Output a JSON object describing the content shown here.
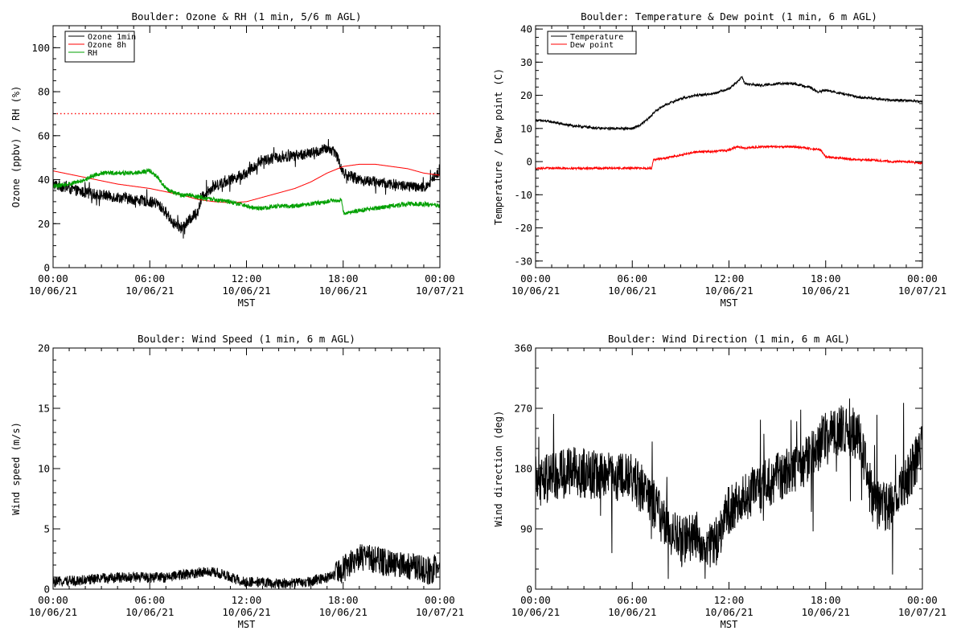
{
  "chart_data": [
    {
      "type": "line",
      "title": "Boulder: Ozone & RH (1 min, 5/6 m AGL)",
      "ylabel": "Ozone (ppbv) / RH (%)",
      "xlabel": "MST",
      "ylim": [
        0,
        110
      ],
      "yticks": [
        "0",
        "20",
        "40",
        "60",
        "80",
        "100"
      ],
      "xlim": [
        0,
        24
      ],
      "xticks_time": [
        "00:00",
        "06:00",
        "12:00",
        "18:00",
        "00:00"
      ],
      "xticks_date": [
        "10/06/21",
        "10/06/21",
        "10/06/21",
        "10/06/21",
        "10/07/21"
      ],
      "legend_position": "top-left",
      "reference_line": {
        "y": 70,
        "color": "#ff0000",
        "style": "dotted"
      },
      "series": [
        {
          "name": "Ozone 1min",
          "color": "#000000",
          "noise": 2.5,
          "x": [
            0,
            1,
            2,
            3,
            4,
            5,
            6,
            6.5,
            7,
            7.5,
            8,
            8.5,
            9,
            9.3,
            9.6,
            10,
            11,
            12,
            13,
            14,
            15,
            16,
            17,
            17.5,
            18,
            19,
            20,
            21,
            22,
            23,
            23.5,
            24
          ],
          "y": [
            38,
            36,
            34,
            33,
            32,
            31,
            30,
            29,
            25,
            20,
            18,
            22,
            26,
            33,
            35,
            37,
            40,
            43,
            49,
            50,
            51,
            52,
            54,
            53,
            43,
            40,
            39,
            38,
            37,
            36,
            40,
            44
          ]
        },
        {
          "name": "Ozone 8h",
          "color": "#ff0000",
          "noise": 0,
          "x": [
            0,
            2,
            4,
            6,
            8,
            9,
            10,
            11,
            12,
            13,
            14,
            15,
            16,
            17,
            18,
            19,
            20,
            21,
            22,
            23,
            24
          ],
          "y": [
            44,
            41,
            38,
            36,
            33,
            31,
            30,
            29.5,
            30,
            32,
            34,
            36,
            39,
            43,
            46,
            47,
            47,
            46,
            45,
            43,
            42
          ]
        },
        {
          "name": "RH",
          "color": "#00a000",
          "noise": 1.0,
          "x": [
            0,
            1,
            2,
            2.5,
            3,
            4,
            5,
            6,
            6.5,
            7,
            7.5,
            8,
            8.5,
            9,
            10,
            11,
            12,
            12.5,
            13,
            14,
            15,
            16,
            17,
            17.9,
            18,
            18.5,
            19,
            20,
            21,
            22,
            23,
            24
          ],
          "y": [
            37,
            38,
            40,
            42,
            43,
            43,
            43,
            44,
            41,
            36,
            34,
            33,
            33,
            32,
            31,
            30,
            28,
            27,
            27,
            28,
            28,
            29,
            30,
            31,
            25,
            25,
            26,
            27,
            28,
            29,
            29,
            28
          ]
        }
      ]
    },
    {
      "type": "line",
      "title": "Boulder: Temperature & Dew point (1 min, 6 m AGL)",
      "ylabel": "Temperature / Dew point (C)",
      "xlabel": "MST",
      "ylim": [
        -32,
        41
      ],
      "yticks": [
        "-30",
        "-20",
        "-10",
        "0",
        "10",
        "20",
        "30",
        "40"
      ],
      "xlim": [
        0,
        24
      ],
      "xticks_time": [
        "00:00",
        "06:00",
        "12:00",
        "18:00",
        "00:00"
      ],
      "xticks_date": [
        "10/06/21",
        "10/06/21",
        "10/06/21",
        "10/06/21",
        "10/07/21"
      ],
      "legend_position": "top-left",
      "series": [
        {
          "name": "Temperature",
          "color": "#000000",
          "noise": 0.35,
          "x": [
            0,
            1,
            2,
            3,
            4,
            5,
            6,
            6.5,
            7,
            7.5,
            8,
            9,
            10,
            11,
            12,
            12.5,
            12.8,
            13,
            14,
            15,
            16,
            17,
            17.5,
            18,
            19,
            20,
            21,
            22,
            23,
            24
          ],
          "y": [
            12.5,
            12,
            11,
            10.5,
            10,
            10,
            10,
            11,
            13,
            15.5,
            17,
            19,
            20,
            20.5,
            22,
            24,
            25.5,
            23.5,
            23,
            23.5,
            23.5,
            22.5,
            21,
            21.5,
            20.5,
            19.5,
            19,
            18.5,
            18.5,
            18
          ]
        },
        {
          "name": "Dew point",
          "color": "#ff0000",
          "noise": 0.3,
          "x": [
            0,
            2,
            4,
            6,
            7.2,
            7.3,
            8,
            9,
            9.5,
            10,
            11,
            12,
            12.5,
            13,
            14,
            15,
            16,
            17,
            17.7,
            17.9,
            18,
            19,
            20,
            21,
            22,
            23,
            24
          ],
          "y": [
            -2,
            -2,
            -2,
            -2,
            -2,
            0.5,
            1,
            2,
            2.5,
            3,
            3,
            3.5,
            4.5,
            4,
            4.5,
            4.5,
            4.5,
            4,
            3.5,
            2,
            1.5,
            1,
            0.5,
            0.5,
            0,
            0,
            -0.5
          ]
        }
      ]
    },
    {
      "type": "line",
      "title": "Boulder: Wind Speed (1 min, 6 m AGL)",
      "ylabel": "Wind speed (m/s)",
      "xlabel": "MST",
      "ylim": [
        0,
        20
      ],
      "yticks": [
        "0",
        "5",
        "10",
        "15",
        "20"
      ],
      "xlim": [
        0,
        24
      ],
      "xticks_time": [
        "00:00",
        "06:00",
        "12:00",
        "18:00",
        "00:00"
      ],
      "xticks_date": [
        "10/06/21",
        "10/06/21",
        "10/06/21",
        "10/06/21",
        "10/07/21"
      ],
      "series": [
        {
          "name": "Wind speed",
          "color": "#000000",
          "noise": 0.55,
          "x": [
            0,
            2,
            4,
            6,
            7,
            8,
            9,
            10,
            11,
            12,
            13,
            14,
            15,
            16,
            17,
            18,
            18.5,
            19,
            20,
            21,
            22,
            23,
            23.5,
            24
          ],
          "y": [
            0.4,
            0.6,
            0.8,
            0.8,
            0.8,
            1.0,
            1.2,
            1.3,
            0.8,
            0.4,
            0.4,
            0.3,
            0.3,
            0.5,
            0.8,
            1.2,
            1.8,
            2.2,
            2.0,
            1.6,
            1.4,
            1.2,
            1.0,
            1.8
          ]
        }
      ]
    },
    {
      "type": "line",
      "title": "Boulder: Wind Direction (1 min, 6 m AGL)",
      "ylabel": "Wind direction (deg)",
      "xlabel": "MST",
      "ylim": [
        0,
        360
      ],
      "yticks": [
        "0",
        "90",
        "180",
        "270",
        "360"
      ],
      "xlim": [
        0,
        24
      ],
      "xticks_time": [
        "00:00",
        "06:00",
        "12:00",
        "18:00",
        "00:00"
      ],
      "xticks_date": [
        "10/06/21",
        "10/06/21",
        "10/06/21",
        "10/06/21",
        "10/07/21"
      ],
      "series": [
        {
          "name": "Wind direction",
          "color": "#000000",
          "noise": 38,
          "x": [
            0,
            2,
            4,
            6,
            7,
            8,
            9,
            10,
            11,
            12,
            13,
            14,
            15,
            16,
            17,
            18,
            19,
            20,
            21,
            22,
            23,
            24
          ],
          "y": [
            160,
            175,
            170,
            165,
            140,
            100,
            70,
            80,
            60,
            120,
            140,
            150,
            170,
            175,
            195,
            230,
            240,
            230,
            125,
            125,
            160,
            210
          ]
        }
      ]
    }
  ]
}
